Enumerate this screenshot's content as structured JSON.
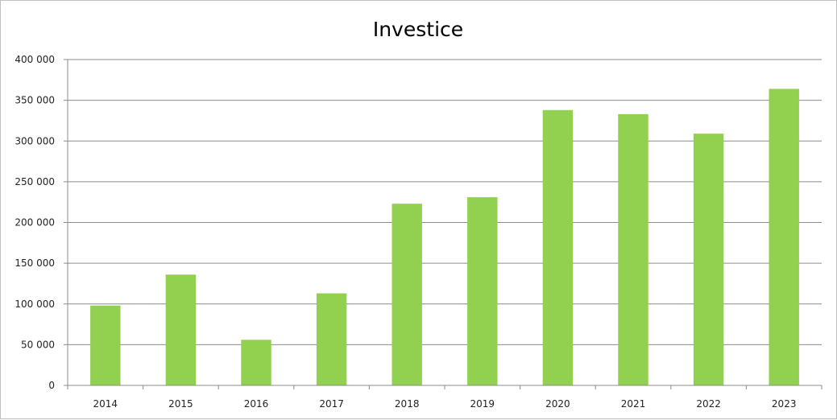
{
  "chart_data": {
    "type": "bar",
    "title": "Investice",
    "xlabel": "",
    "ylabel": "",
    "categories": [
      "2014",
      "2015",
      "2016",
      "2017",
      "2018",
      "2019",
      "2020",
      "2021",
      "2022",
      "2023"
    ],
    "values": [
      98000,
      136000,
      56000,
      113000,
      223000,
      231000,
      338000,
      333000,
      309000,
      364000
    ],
    "ylim": [
      0,
      400000
    ],
    "y_ticks": [
      0,
      50000,
      100000,
      150000,
      200000,
      250000,
      300000,
      350000,
      400000
    ],
    "y_tick_labels": [
      "0",
      "50 000",
      "100 000",
      "150 000",
      "200 000",
      "250 000",
      "300 000",
      "350 000",
      "400 000"
    ],
    "grid": true,
    "legend": "none",
    "bar_color": "#92d050",
    "grid_color": "#8c8c8c"
  }
}
